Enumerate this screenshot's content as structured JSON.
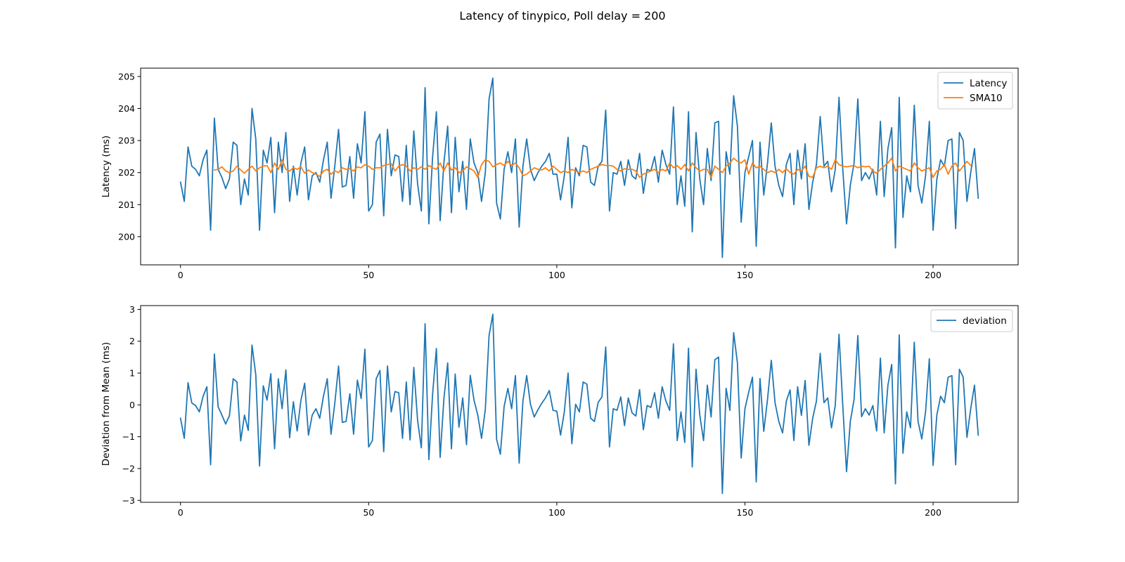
{
  "figure": {
    "title": "Latency of tinypico, Poll delay = 200"
  },
  "colors": {
    "latency": "#1f77b4",
    "sma": "#ff7f0e",
    "deviation": "#1f77b4",
    "axes": "#000000",
    "legend_border": "#cccccc"
  },
  "chart_data": [
    {
      "type": "line",
      "title": "",
      "xlabel": "",
      "ylabel": "Latency (ms)",
      "xlim": [
        -10.6,
        222.6
      ],
      "ylim": [
        199.12,
        205.26
      ],
      "xticks": [
        0,
        50,
        100,
        150,
        200
      ],
      "yticks": [
        200,
        201,
        202,
        203,
        204,
        205
      ],
      "legend_position": "top-right",
      "grid": false,
      "series": [
        {
          "name": "Latency",
          "x_start": 0,
          "values": [
            201.7,
            201.1,
            202.8,
            202.2,
            202.1,
            201.9,
            202.4,
            202.7,
            200.2,
            203.7,
            202.1,
            201.85,
            201.5,
            201.8,
            202.95,
            202.85,
            201.0,
            201.8,
            201.3,
            204.0,
            203.05,
            200.2,
            202.7,
            202.3,
            203.1,
            200.75,
            202.95,
            202.0,
            203.25,
            201.1,
            202.2,
            201.3,
            202.3,
            202.8,
            201.15,
            201.9,
            202.0,
            201.7,
            202.4,
            202.95,
            201.2,
            202.2,
            203.35,
            201.55,
            201.6,
            202.5,
            201.2,
            202.9,
            202.3,
            203.9,
            200.8,
            201.0,
            202.95,
            203.2,
            200.65,
            203.35,
            201.9,
            202.55,
            202.5,
            201.1,
            202.85,
            201.0,
            203.3,
            201.65,
            200.8,
            204.65,
            200.4,
            202.5,
            203.9,
            200.5,
            202.3,
            203.45,
            200.75,
            203.1,
            201.4,
            202.35,
            200.85,
            203.05,
            202.3,
            202.0,
            201.1,
            202.0,
            204.3,
            204.95,
            201.05,
            200.55,
            202.1,
            202.65,
            202.0,
            203.05,
            200.3,
            202.2,
            203.05,
            202.1,
            201.75,
            202.0,
            202.2,
            202.35,
            202.6,
            201.95,
            201.95,
            201.15,
            201.9,
            203.1,
            200.9,
            202.15,
            201.9,
            202.85,
            202.8,
            201.7,
            201.6,
            202.2,
            202.35,
            203.95,
            200.8,
            202.0,
            201.95,
            202.35,
            201.6,
            202.4,
            201.9,
            201.8,
            202.6,
            201.35,
            202.1,
            202.05,
            202.5,
            201.7,
            202.7,
            202.25,
            201.95,
            204.05,
            201.0,
            201.9,
            200.95,
            203.9,
            200.15,
            203.25,
            201.8,
            201.0,
            202.75,
            201.75,
            203.55,
            203.6,
            199.35,
            202.65,
            201.95,
            204.4,
            203.45,
            200.45,
            202.0,
            202.5,
            203.0,
            199.7,
            202.95,
            201.3,
            202.3,
            203.55,
            202.2,
            201.6,
            201.25,
            202.25,
            202.6,
            201.0,
            202.7,
            201.8,
            202.9,
            200.85,
            201.7,
            202.25,
            203.75,
            202.2,
            202.35,
            201.4,
            202.1,
            204.35,
            202.1,
            200.4,
            201.6,
            202.3,
            204.3,
            201.75,
            202.0,
            201.8,
            202.1,
            201.3,
            203.6,
            201.25,
            202.75,
            203.4,
            199.65,
            204.35,
            200.6,
            201.9,
            201.4,
            204.1,
            201.6,
            201.05,
            201.9,
            203.6,
            200.2,
            201.8,
            202.4,
            202.2,
            203.0,
            203.05,
            200.25,
            203.25,
            203.0,
            201.1,
            202.0,
            202.75,
            201.2
          ]
        },
        {
          "name": "SMA10",
          "x_start": 9,
          "values": [
            202.08,
            202.1,
            202.18,
            202.05,
            202.0,
            202.05,
            202.2,
            202.08,
            201.98,
            202.1,
            202.2,
            202.05,
            202.15,
            202.2,
            202.22,
            202.0,
            202.3,
            202.1,
            202.4,
            202.1,
            202.05,
            202.15,
            202.1,
            202.18,
            201.98,
            202.08,
            202.0,
            201.95,
            201.88,
            202.05,
            202.1,
            201.95,
            202.05,
            202.0,
            202.15,
            202.1,
            202.12,
            202.05,
            202.18,
            202.15,
            202.25,
            202.2,
            202.1,
            202.15,
            202.15,
            202.22,
            202.25,
            202.28,
            202.05,
            202.2,
            202.25,
            202.2,
            202.05,
            202.15,
            202.1,
            202.18,
            202.1,
            202.22,
            202.15,
            202.1,
            202.3,
            202.05,
            202.3,
            202.08,
            202.15,
            202.0,
            202.05,
            202.18,
            202.12,
            202.05,
            201.85,
            202.25,
            202.4,
            202.35,
            202.18,
            202.25,
            202.3,
            202.22,
            202.35,
            202.22,
            202.3,
            202.15,
            201.9,
            201.95,
            202.05,
            202.15,
            202.1,
            202.08,
            202.15,
            202.05,
            202.2,
            202.1,
            202.0,
            202.05,
            202.0,
            202.1,
            202.05,
            202.0,
            202.05,
            202.0,
            202.1,
            202.15,
            202.2,
            202.25,
            202.22,
            202.22,
            202.2,
            202.1,
            202.05,
            202.12,
            202.1,
            202.1,
            202.05,
            201.85,
            201.95,
            202.0,
            202.05,
            202.1,
            202.0,
            202.1,
            202.05,
            202.3,
            202.15,
            202.22,
            202.1,
            202.25,
            202.05,
            202.3,
            202.15,
            202.05,
            202.1,
            202.1,
            201.85,
            202.2,
            202.1,
            202.0,
            202.2,
            202.3,
            202.45,
            202.35,
            202.3,
            202.4,
            201.95,
            202.3,
            202.15,
            202.2,
            202.1,
            202.0,
            202.05,
            202.0,
            202.1,
            202.0,
            202.12,
            202.0,
            201.95,
            202.1,
            202.05,
            202.2,
            201.88,
            201.85,
            202.15,
            202.2,
            202.15,
            202.2,
            202.1,
            202.4,
            202.25,
            202.2,
            202.18,
            202.2,
            202.22,
            202.15,
            202.2,
            202.18,
            202.2,
            202.05,
            201.98,
            202.1,
            202.2,
            202.3,
            202.45,
            202.05,
            202.2,
            202.15,
            202.1,
            202.05,
            202.3,
            202.15,
            202.05,
            202.1,
            202.15,
            201.85,
            202.05,
            202.1,
            202.25,
            201.95,
            202.2,
            202.3,
            202.05,
            202.2,
            202.35,
            202.22
          ]
        }
      ]
    },
    {
      "type": "line",
      "title": "",
      "xlabel": "",
      "ylabel": "Deviation from Mean (ms)",
      "xlim": [
        -10.6,
        222.6
      ],
      "ylim": [
        -3.06,
        3.12
      ],
      "xticks": [
        0,
        50,
        100,
        150,
        200
      ],
      "yticks": [
        -3,
        -2,
        -1,
        0,
        1,
        2,
        3
      ],
      "legend_position": "top-right",
      "grid": false,
      "series": [
        {
          "name": "deviation",
          "x_start": 0,
          "values": [
            -0.42,
            -1.05,
            0.7,
            0.06,
            -0.02,
            -0.22,
            0.27,
            0.57,
            -1.88,
            1.6,
            -0.06,
            -0.32,
            -0.6,
            -0.34,
            0.82,
            0.72,
            -1.13,
            -0.32,
            -0.8,
            1.88,
            0.95,
            -1.92,
            0.6,
            0.15,
            0.98,
            -1.38,
            0.82,
            -0.12,
            1.1,
            -1.03,
            0.1,
            -0.82,
            0.15,
            0.68,
            -0.95,
            -0.32,
            -0.12,
            -0.42,
            0.28,
            0.82,
            -0.92,
            0.05,
            1.22,
            -0.55,
            -0.52,
            0.35,
            -0.92,
            0.78,
            0.2,
            1.75,
            -1.32,
            -1.12,
            0.82,
            1.08,
            -1.47,
            1.22,
            -0.22,
            0.42,
            0.38,
            -1.05,
            0.72,
            -1.1,
            1.18,
            -0.48,
            -1.35,
            2.55,
            -1.72,
            0.35,
            1.77,
            -1.65,
            0.2,
            1.32,
            -1.38,
            0.97,
            -0.7,
            0.22,
            -1.25,
            0.93,
            0.15,
            -0.32,
            -1.05,
            -0.15,
            2.18,
            2.85,
            -1.08,
            -1.55,
            -0.05,
            0.52,
            -0.12,
            0.92,
            -1.83,
            0.12,
            0.92,
            0.02,
            -0.38,
            -0.15,
            0.05,
            0.22,
            0.45,
            -0.17,
            -0.2,
            -0.95,
            -0.22,
            1.0,
            -1.22,
            0.02,
            -0.22,
            0.72,
            0.65,
            -0.42,
            -0.52,
            0.08,
            0.25,
            1.82,
            -1.32,
            -0.12,
            -0.17,
            0.25,
            -0.65,
            0.22,
            -0.25,
            -0.35,
            0.48,
            -0.78,
            -0.02,
            -0.08,
            0.38,
            -0.42,
            0.57,
            0.12,
            -0.17,
            1.92,
            -1.12,
            -0.22,
            -1.18,
            1.78,
            -1.95,
            1.12,
            -0.32,
            -1.12,
            0.62,
            -0.38,
            1.42,
            1.5,
            -2.78,
            0.52,
            -0.17,
            2.27,
            1.32,
            -1.67,
            -0.12,
            0.4,
            0.87,
            -2.42,
            0.83,
            -0.83,
            0.17,
            1.4,
            0.07,
            -0.52,
            -0.88,
            0.12,
            0.47,
            -1.12,
            0.57,
            -0.33,
            0.77,
            -1.27,
            -0.42,
            0.12,
            1.62,
            0.07,
            0.22,
            -0.72,
            -0.02,
            2.22,
            -0.02,
            -2.1,
            -0.52,
            0.17,
            2.18,
            -0.37,
            -0.12,
            -0.32,
            -0.02,
            -0.82,
            1.47,
            -0.88,
            0.62,
            1.27,
            -2.48,
            2.2,
            -1.52,
            -0.22,
            -0.72,
            1.97,
            -0.52,
            -1.07,
            -0.22,
            1.45,
            -1.9,
            -0.32,
            0.27,
            0.07,
            0.87,
            0.92,
            -1.88,
            1.12,
            0.87,
            -1.02,
            -0.12,
            0.62,
            -0.95
          ]
        }
      ]
    }
  ]
}
